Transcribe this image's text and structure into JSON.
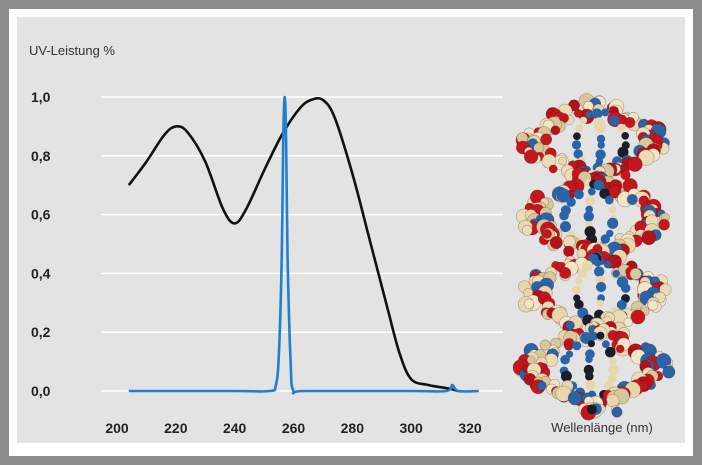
{
  "chart_data": {
    "type": "line",
    "ylabel": "UV-Leistung %",
    "xlabel": "Wellenlänge (nm)",
    "xlim": [
      200,
      320
    ],
    "ylim": [
      0.0,
      1.0
    ],
    "x_ticks": [
      "200",
      "220",
      "240",
      "260",
      "280",
      "300",
      "320"
    ],
    "y_ticks": [
      "0,0",
      "0,2",
      "0,4",
      "0,6",
      "0,8",
      "1,0"
    ],
    "grid": true,
    "series": [
      {
        "color": "#111111",
        "x": [
          204,
          210,
          216,
          220,
          224,
          230,
          236,
          240,
          244,
          250,
          256,
          262,
          266,
          270,
          274,
          280,
          286,
          292,
          296,
          300,
          306,
          312,
          316
        ],
        "y": [
          0.7,
          0.78,
          0.87,
          0.9,
          0.88,
          0.78,
          0.62,
          0.57,
          0.62,
          0.75,
          0.87,
          0.96,
          0.99,
          0.99,
          0.93,
          0.74,
          0.51,
          0.28,
          0.13,
          0.04,
          0.02,
          0.01,
          0.0
        ]
      },
      {
        "color": "#1f7fd0",
        "x": [
          204,
          240,
          252,
          254,
          255,
          256,
          256.5,
          257,
          257.5,
          258,
          259,
          260,
          264,
          300,
          312,
          314,
          316,
          323
        ],
        "y": [
          0.0,
          0.0,
          0.0,
          0.02,
          0.12,
          0.45,
          0.85,
          1.0,
          0.85,
          0.45,
          0.1,
          0.0,
          0.0,
          0.0,
          0.0,
          0.02,
          0.0,
          0.0
        ]
      }
    ]
  }
}
